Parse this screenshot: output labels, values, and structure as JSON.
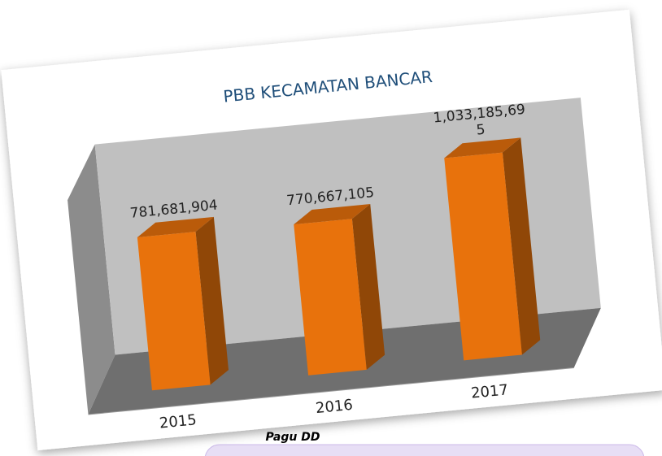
{
  "chart_data": {
    "type": "bar3d",
    "title": "PBB KECAMATAN BANCAR",
    "categories": [
      "2015",
      "2016",
      "2017"
    ],
    "values": [
      781681904,
      770667105,
      1033185695
    ],
    "value_labels": [
      "781,681,904",
      "770,667,105",
      "1,033,185,695"
    ],
    "color": "#e8720c"
  },
  "footer_label": "Pagu DD"
}
